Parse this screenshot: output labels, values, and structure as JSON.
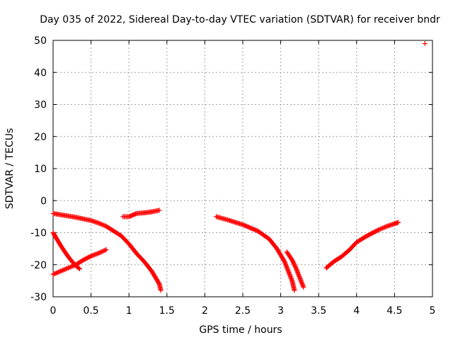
{
  "chart_data": {
    "type": "scatter",
    "title": "Day 035 of 2022, Sidereal Day-to-day VTEC variation (SDTVAR) for receiver bndr",
    "xlabel": "GPS time / hours",
    "ylabel": "SDTVAR / TECUs",
    "xlim": [
      0,
      5
    ],
    "ylim": [
      -30,
      50
    ],
    "x_ticks": [
      "0",
      "0.5",
      "1",
      "1.5",
      "2",
      "2.5",
      "3",
      "3.5",
      "4",
      "4.5",
      "5"
    ],
    "y_ticks": [
      "-30",
      "-20",
      "-10",
      "0",
      "10",
      "20",
      "30",
      "40",
      "50"
    ],
    "grid": true,
    "legend": "none",
    "marker": "plus",
    "color": "#ff0000",
    "segments": [
      {
        "x": [
          0.0,
          0.1,
          0.2,
          0.3,
          0.4,
          0.5,
          0.6,
          0.7,
          0.8,
          0.9,
          1.0,
          1.1,
          1.2,
          1.3,
          1.35,
          1.4,
          1.42
        ],
        "y": [
          -4,
          -4.4,
          -4.8,
          -5.2,
          -5.7,
          -6.2,
          -7,
          -8,
          -9.5,
          -11,
          -13.5,
          -16.5,
          -19,
          -22,
          -24,
          -26,
          -28
        ]
      },
      {
        "x": [
          0.0,
          0.05,
          0.1,
          0.15,
          0.2,
          0.25,
          0.3,
          0.35
        ],
        "y": [
          -10,
          -12,
          -14,
          -15.8,
          -17.5,
          -19,
          -20.3,
          -21.3
        ]
      },
      {
        "x": [
          0.0,
          0.1,
          0.2,
          0.3,
          0.4,
          0.5,
          0.6,
          0.7
        ],
        "y": [
          -23,
          -22,
          -21,
          -20,
          -18.5,
          -17.3,
          -16.4,
          -15.3
        ]
      },
      {
        "x": [
          0.92,
          1.0,
          1.05,
          1.1,
          1.2,
          1.3,
          1.4
        ],
        "y": [
          -5,
          -5,
          -4.5,
          -4,
          -3.8,
          -3.5,
          -3
        ]
      },
      {
        "x": [
          2.15,
          2.3,
          2.5,
          2.7,
          2.85,
          2.95,
          3.05,
          3.1,
          3.15,
          3.18
        ],
        "y": [
          -5,
          -6,
          -7.5,
          -9.5,
          -12,
          -15,
          -19,
          -22,
          -25,
          -28
        ]
      },
      {
        "x": [
          3.08,
          3.15,
          3.2,
          3.25,
          3.3
        ],
        "y": [
          -16,
          -18.5,
          -21,
          -24,
          -27
        ]
      },
      {
        "x": [
          3.6,
          3.7,
          3.8,
          3.9,
          4.0,
          4.1,
          4.2,
          4.3,
          4.4,
          4.5,
          4.55
        ],
        "y": [
          -21,
          -19,
          -17.5,
          -15.5,
          -13,
          -11.5,
          -10.2,
          -9,
          -8,
          -7.2,
          -6.8
        ]
      },
      {
        "x": [
          4.9
        ],
        "y": [
          49
        ]
      }
    ]
  }
}
